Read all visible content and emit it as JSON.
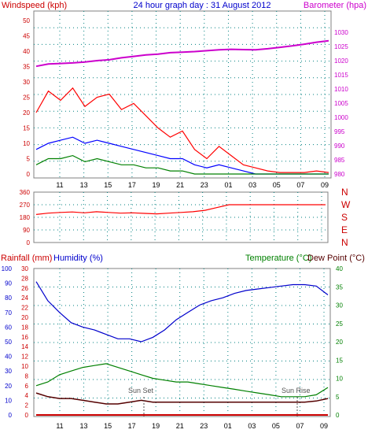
{
  "title": "24 hour graph day : 31 August 2012",
  "time_ticks": [
    "11",
    "13",
    "15",
    "17",
    "19",
    "21",
    "23",
    "01",
    "03",
    "05",
    "07",
    "09"
  ],
  "colors": {
    "wind_gust": "#ff0000",
    "wind_avg": "#0000ff",
    "wind_min": "#008000",
    "barometer": "#cc00cc",
    "direction": "#ff0000",
    "humidity": "#0000cc",
    "temperature": "#008000",
    "dewpoint": "#550000",
    "rainfall": "#cc0000",
    "left_axis_red": "#cc0000",
    "left_axis_blue": "#0000cc",
    "right_axis_green": "#008000",
    "right_axis_magenta": "#cc00cc",
    "grid": "#008080"
  },
  "chart_data": [
    {
      "type": "line",
      "panel": "wind-barometer",
      "left_label": "Windspeed (kph)",
      "right_label": "Barometer (hpa)",
      "left_ticks": [
        "0",
        "5",
        "10",
        "15",
        "20",
        "25",
        "30",
        "35",
        "40",
        "45",
        "50"
      ],
      "right_ticks": [
        "980",
        "985",
        "990",
        "995",
        "1000",
        "1005",
        "1010",
        "1015",
        "1020",
        "1025",
        "1030"
      ],
      "ylim_left": [
        0,
        50
      ],
      "ylim_right": [
        980,
        1030
      ],
      "series": [
        {
          "values": [
            20,
            27,
            24,
            28,
            22,
            25,
            26,
            21,
            23,
            19,
            15,
            12,
            14,
            8,
            5,
            9,
            6,
            3,
            2,
            1,
            0.5,
            0.5,
            0.5,
            1,
            0.5
          ]
        },
        {
          "values": [
            8,
            10,
            11,
            12,
            10,
            11,
            10,
            9,
            8,
            7,
            6,
            5,
            5,
            3,
            2,
            3,
            2,
            1,
            0,
            0,
            0,
            0,
            0,
            0,
            0
          ]
        },
        {
          "values": [
            3,
            5,
            5,
            6,
            4,
            5,
            4,
            3,
            3,
            2,
            2,
            1,
            1,
            0,
            0,
            0,
            0,
            0,
            0,
            0,
            0,
            0,
            0,
            0,
            0
          ]
        },
        {
          "values": [
            1018,
            1018.8,
            1019,
            1019.2,
            1019.5,
            1020,
            1020.3,
            1021,
            1021.5,
            1022,
            1022.3,
            1022.8,
            1023,
            1023.2,
            1023.5,
            1023.8,
            1024,
            1023.9,
            1023.8,
            1024.2,
            1024.7,
            1025.2,
            1025.8,
            1026.5,
            1027
          ]
        }
      ]
    },
    {
      "type": "line",
      "panel": "wind-direction",
      "left_ticks": [
        "0",
        "90",
        "180",
        "270",
        "360"
      ],
      "right_ticks": [
        "N",
        "W",
        "S",
        "E",
        "N"
      ],
      "ylim": [
        0,
        360
      ],
      "series": [
        {
          "values": [
            200,
            210,
            215,
            218,
            212,
            220,
            215,
            210,
            212,
            208,
            205,
            210,
            215,
            220,
            230,
            250,
            270,
            270,
            270,
            270,
            270,
            270,
            270,
            270,
            270
          ]
        }
      ]
    },
    {
      "type": "line",
      "panel": "humidity-temperature",
      "left_label": "Rainfall (mm)",
      "left_label_2": "Humidity (%)",
      "right_label": "Temperature (°C)",
      "right_label_2": "Dew Point (°C)",
      "left_ticks_rain": [
        "0",
        "2",
        "4",
        "6",
        "8",
        "10",
        "12",
        "14",
        "16",
        "18",
        "20",
        "22",
        "24",
        "26",
        "28",
        "30"
      ],
      "left_ticks_humidity": [
        "0",
        "10",
        "20",
        "30",
        "40",
        "50",
        "60",
        "70",
        "80",
        "90",
        "100"
      ],
      "right_ticks": [
        "0",
        "5",
        "10",
        "15",
        "20",
        "25",
        "30",
        "35",
        "40"
      ],
      "ylim_humidity": [
        0,
        100
      ],
      "ylim_temperature": [
        0,
        40
      ],
      "annotations": [
        "Sun Set",
        "Sun Rise"
      ],
      "series": [
        {
          "values": [
            91,
            78,
            70,
            63,
            60,
            58,
            55,
            52,
            52,
            50,
            53,
            58,
            65,
            70,
            75,
            78,
            80,
            83,
            85,
            86,
            87,
            88,
            89,
            89,
            88,
            82
          ]
        },
        {
          "values": [
            8,
            9,
            11,
            12,
            13,
            13.5,
            14,
            13,
            12,
            11,
            10,
            9.5,
            9,
            9,
            8.5,
            8,
            7.5,
            7,
            6.5,
            6,
            5.5,
            5,
            5,
            5,
            5.5,
            7.5
          ]
        },
        {
          "values": [
            6,
            5,
            4.5,
            4.5,
            4,
            3.5,
            3,
            3,
            3.5,
            4,
            3.5,
            3.5,
            3.5,
            3.5,
            3.5,
            3.5,
            3.5,
            3.5,
            3.5,
            3.5,
            3.5,
            3.5,
            3.5,
            3.5,
            3.8,
            4.5
          ]
        },
        {
          "values": [
            0,
            0,
            0,
            0,
            0,
            0,
            0,
            0,
            0,
            0,
            0,
            0,
            0,
            0,
            0,
            0,
            0,
            0,
            0,
            0,
            0,
            0,
            0,
            0,
            0,
            0
          ]
        }
      ]
    }
  ]
}
